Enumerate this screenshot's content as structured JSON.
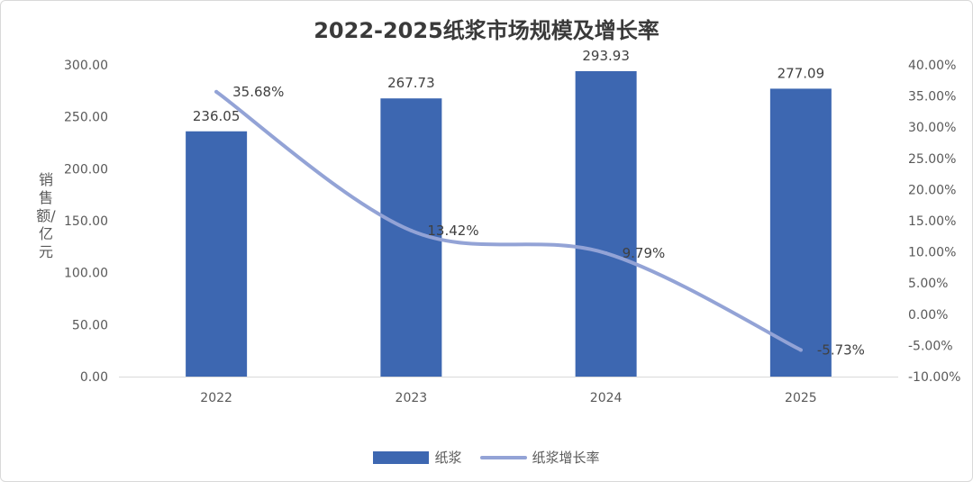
{
  "chart_data": {
    "type": "bar",
    "title": "2022-2025纸浆市场规模及增长率",
    "ylabel": "销售额/亿元",
    "categories": [
      "2022",
      "2023",
      "2024",
      "2025"
    ],
    "ylim": [
      0,
      300
    ],
    "y2lim": [
      -10,
      40
    ],
    "y_ticks": [
      "0.00",
      "50.00",
      "100.00",
      "150.00",
      "200.00",
      "250.00",
      "300.00"
    ],
    "y2_ticks": [
      "-10.00%",
      "-5.00%",
      "0.00%",
      "5.00%",
      "10.00%",
      "15.00%",
      "20.00%",
      "25.00%",
      "30.00%",
      "35.00%",
      "40.00%"
    ],
    "legend_position": "bottom",
    "grid": false,
    "series": [
      {
        "name": "纸浆",
        "type": "bar",
        "axis": "left",
        "color": "#3d67b1",
        "values": [
          236.05,
          267.73,
          293.93,
          277.09
        ],
        "labels": [
          "236.05",
          "267.73",
          "293.93",
          "277.09"
        ]
      },
      {
        "name": "纸浆增长率",
        "type": "line",
        "axis": "right",
        "color": "#93a3d6",
        "values": [
          35.68,
          13.42,
          9.79,
          -5.73
        ],
        "labels": [
          "35.68%",
          "13.42%",
          "9.79%",
          "-5.73%"
        ]
      }
    ]
  }
}
